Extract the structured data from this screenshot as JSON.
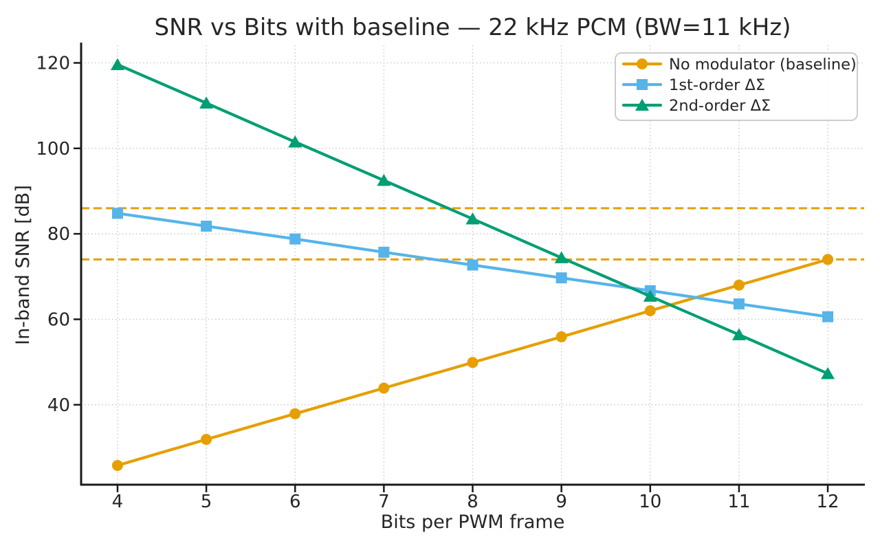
{
  "chart_data": {
    "type": "line",
    "title": "SNR vs Bits with baseline — 22 kHz PCM (BW=11 kHz)",
    "xlabel": "Bits per PWM frame",
    "ylabel": "In-band SNR [dB]",
    "x": [
      4,
      5,
      6,
      7,
      8,
      9,
      10,
      11,
      12
    ],
    "series": [
      {
        "name": "No modulator (baseline)",
        "color": "#E69F00",
        "marker": "circle",
        "values": [
          25.8,
          31.9,
          37.9,
          43.9,
          49.9,
          55.9,
          62.0,
          68.0,
          74.0
        ]
      },
      {
        "name": "1st-order ΔΣ",
        "color": "#56B4E9",
        "marker": "square",
        "values": [
          84.8,
          81.8,
          78.8,
          75.7,
          72.7,
          69.7,
          66.7,
          63.6,
          60.6
        ]
      },
      {
        "name": "2nd-order ΔΣ",
        "color": "#009E73",
        "marker": "triangle",
        "values": [
          119.6,
          110.6,
          101.5,
          92.5,
          83.5,
          74.4,
          65.4,
          56.4,
          47.3
        ]
      }
    ],
    "reference_lines": [
      {
        "y": 86,
        "color": "#E69F00",
        "style": "dashed"
      },
      {
        "y": 74,
        "color": "#E69F00",
        "style": "dashed"
      }
    ],
    "xticks": [
      4,
      5,
      6,
      7,
      8,
      9,
      10,
      11,
      12
    ],
    "yticks": [
      40,
      60,
      80,
      100,
      120
    ],
    "xlim": [
      3.59,
      12.41
    ],
    "ylim": [
      21.3,
      124.1
    ],
    "grid": true,
    "grid_style": "dotted",
    "legend_position": "upper right"
  },
  "style": {
    "background": "#ffffff",
    "text_color": "#262626",
    "spine_color": "#1a1a1a",
    "grid_color": "#c8c8c8",
    "legend_border_color": "#cccccc",
    "legend_background": "#ffffff"
  }
}
